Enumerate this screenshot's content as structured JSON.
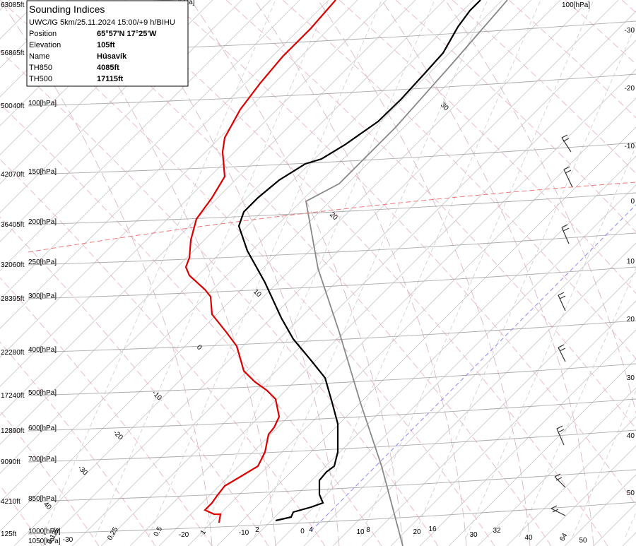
{
  "info": {
    "title": "Sounding Indices",
    "run": "UWC/IG 5km/25.11.2024 15:00/+9 h/BIHU",
    "rows": [
      [
        "Position",
        "65°57'N 17°25'W"
      ],
      [
        "Elevation",
        "105ft"
      ],
      [
        "Name",
        "Húsavík"
      ],
      [
        "TH850",
        "4085ft"
      ],
      [
        "TH500",
        "17115ft"
      ]
    ]
  },
  "left_axis": [
    [
      "63085ft",
      "[hPa]"
    ],
    [
      "56865ft",
      null
    ],
    [
      "50040ft",
      "100[hPa]"
    ],
    [
      "42070ft",
      "150[hPa]"
    ],
    [
      "36405ft",
      "200[hPa]"
    ],
    [
      "32060ft",
      "250[hPa]"
    ],
    [
      "28395ft",
      "300[hPa]"
    ],
    [
      "22280ft",
      "400[hPa]"
    ],
    [
      "17240ft",
      "500[hPa]"
    ],
    [
      "12890ft",
      "600[hPa]"
    ],
    [
      "9090ft",
      "700[hPa]"
    ],
    [
      "4210ft",
      "850[hPa]"
    ],
    [
      "125ft",
      "1000[hPa]"
    ]
  ],
  "bottom_pressure": "1050[hPa]",
  "top_right_pressure": "100[hPa]",
  "right_axis": [
    "-30",
    "-20",
    "-10",
    "0",
    "10",
    "20",
    "30",
    "40",
    "50"
  ],
  "mixing_ratio_labels": [
    "0.125",
    "0.25",
    "0.5",
    "1",
    "2",
    "4",
    "8",
    "16",
    "32",
    "64"
  ],
  "bottom_temperatures": [
    "-30",
    "-20",
    "-10",
    "0",
    "10",
    "20",
    "30",
    "40",
    "50"
  ],
  "isotherm_labels": [
    "40",
    "-30",
    "-20",
    "-10",
    "0",
    "10",
    "20",
    "30"
  ]
}
